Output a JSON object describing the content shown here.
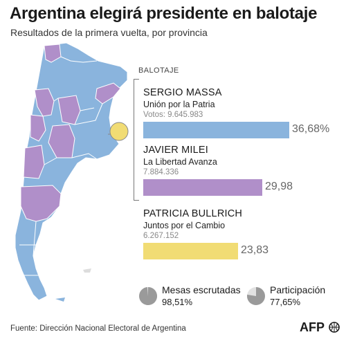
{
  "header": {
    "title": "Argentina elegirá presidente en balotaje",
    "subtitle": "Resultados de la primera vuelta, por provincia"
  },
  "legend": {
    "title": "BALOTAJE"
  },
  "candidates": [
    {
      "name": "SERGIO MASSA",
      "party": "Unión por la Patria",
      "votes": "Votos: 9.645.983",
      "percent_label": "36,68%",
      "share": 36.68,
      "color": "#8ab4dd"
    },
    {
      "name": "JAVIER MILEI",
      "party": "La Libertad Avanza",
      "votes": "7.884.336",
      "percent_label": "29,98",
      "share": 29.98,
      "color": "#b08fc9"
    },
    {
      "name": "PATRICIA BULLRICH",
      "party": "Juntos por el Cambio",
      "votes": "6.267.152",
      "percent_label": "23,83",
      "share": 23.83,
      "color": "#f1dc74"
    }
  ],
  "stats": [
    {
      "label": "Mesas escrutadas",
      "value": "98,51%",
      "fraction": 0.9851
    },
    {
      "label": "Participación",
      "value": "77,65%",
      "fraction": 0.7765
    }
  ],
  "footer": {
    "source": "Fuente: Dirección Nacional Electoral de Argentina",
    "logo_text": "AFP"
  },
  "colors": {
    "massa": "#8ab4dd",
    "milei": "#b08fc9",
    "bullrich": "#f1dc74",
    "pie_done": "#9a9a9a",
    "pie_rest": "#e2e2e2"
  }
}
